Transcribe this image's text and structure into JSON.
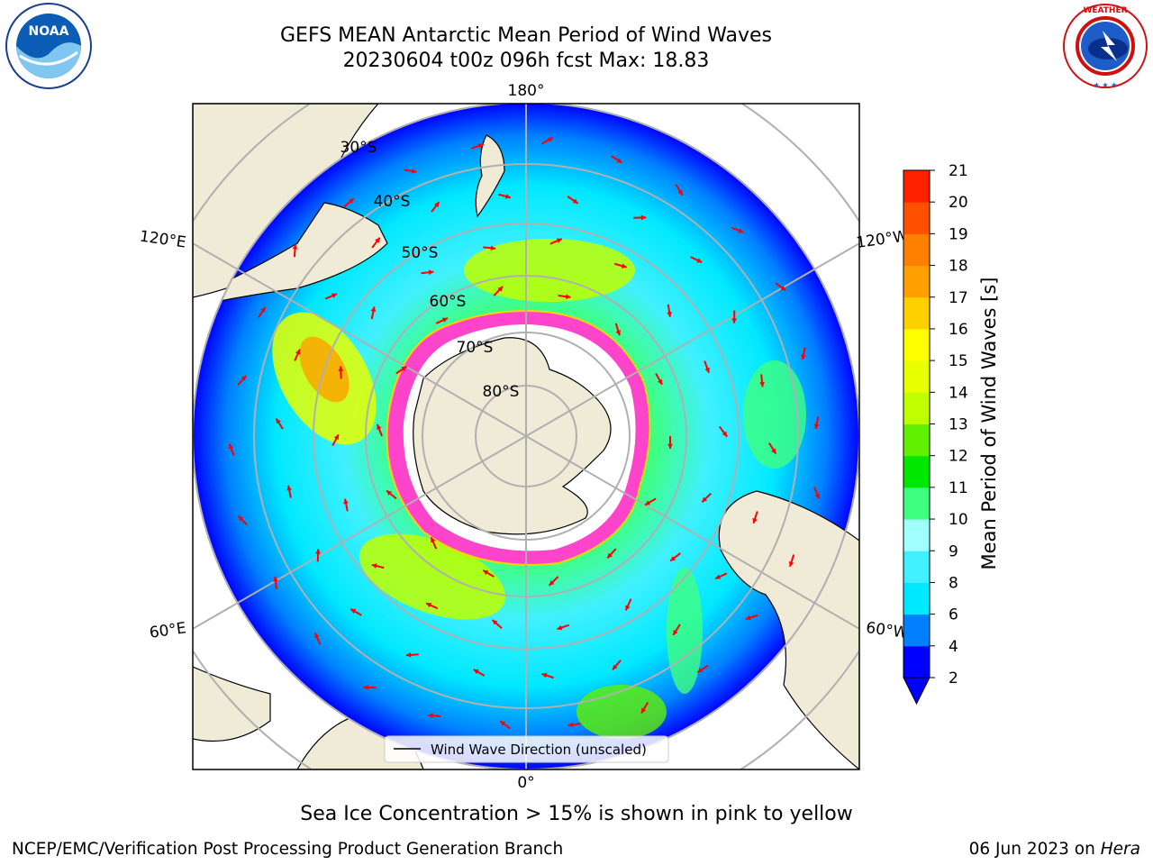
{
  "header": {
    "title_line1": "GEFS MEAN Antarctic Mean Period of Wind Waves",
    "title_line2": "20230604 t00z 096h fcst   Max: 18.83"
  },
  "logos": {
    "left": {
      "name": "noaa-logo",
      "text": "NOAA",
      "ring_text": "NATIONAL OCEANIC AND ATMOSPHERIC ADMINISTRATION · U.S. DEPARTMENT OF COMMERCE"
    },
    "right": {
      "name": "nws-logo",
      "ring_text": "NATIONAL WEATHER SERVICE"
    }
  },
  "map": {
    "projection": "south-polar-stereographic",
    "longitude_labels": [
      "180°",
      "120°E",
      "120°W",
      "60°E",
      "60°W",
      "0°"
    ],
    "latitude_labels": [
      "30°S",
      "40°S",
      "50°S",
      "60°S",
      "70°S",
      "80°S"
    ],
    "legend_label": "Wind Wave Direction (unscaled)",
    "colors": {
      "land": "#efebd7",
      "ice": "#ff44cc",
      "arrow": "#ff0000"
    }
  },
  "colorbar": {
    "title": "Mean Period of Wind Waves [s]",
    "ticks": [
      "2",
      "4",
      "6",
      "8",
      "9",
      "10",
      "11",
      "12",
      "13",
      "14",
      "15",
      "16",
      "17",
      "18",
      "19",
      "20",
      "21"
    ],
    "colors": [
      "#0000ff",
      "#0080ff",
      "#00e8ff",
      "#40f0ff",
      "#a0ffff",
      "#40ff80",
      "#00e800",
      "#60f000",
      "#c0ff00",
      "#e8ff00",
      "#ffff00",
      "#ffd000",
      "#ffa000",
      "#ff8000",
      "#ff5000",
      "#ff2000"
    ],
    "extend_color": "#0000ff"
  },
  "footer": {
    "note": "Sea Ice Concentration > 15% is shown in pink to yellow",
    "left": "NCEP/EMC/Verification Post Processing Product Generation Branch",
    "right_date": "06 Jun 2023 on ",
    "right_host": "Hera"
  }
}
